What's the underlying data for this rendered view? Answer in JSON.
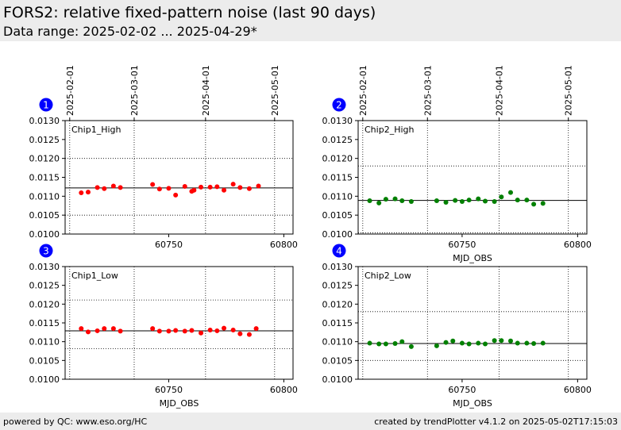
{
  "header": {
    "title": "FORS2: relative fixed-pattern noise (last 90 days)",
    "subtitle": "Data range: 2025-02-02 ... 2025-04-29*"
  },
  "footer": {
    "left": "powered by QC: www.eso.org/HC",
    "right": "created by trendPlotter v4.1.2 on 2025-05-02T17:15:03"
  },
  "colors": {
    "chip1": "#ff0000",
    "chip2": "#008000",
    "badge": "#0000ff"
  },
  "chart_data": [
    {
      "type": "scatter",
      "badge": "1",
      "label": "Chip1_High",
      "color": "#ff0000",
      "xlabel": "",
      "ylabel": "",
      "xlim": [
        60705,
        60804
      ],
      "ylim": [
        0.01,
        0.013
      ],
      "yticks": [
        "0.0100",
        "0.0105",
        "0.0110",
        "0.0115",
        "0.0120",
        "0.0125",
        "0.0130"
      ],
      "xticks": [
        60750,
        60800
      ],
      "date_ticks": [
        {
          "label": "2025-02-01",
          "mjd": 60707
        },
        {
          "label": "2025-03-01",
          "mjd": 60735
        },
        {
          "label": "2025-04-01",
          "mjd": 60766
        },
        {
          "label": "2025-05-01",
          "mjd": 60796
        }
      ],
      "hlines": {
        "mean": 0.01122,
        "upper": 0.012,
        "lower": 0.0105
      },
      "x": [
        60712,
        60715,
        60719,
        60722,
        60726,
        60729,
        60743,
        60746,
        60750,
        60753,
        60757,
        60760,
        60761,
        60764,
        60768,
        60771,
        60774,
        60778,
        60781,
        60785,
        60789
      ],
      "y": [
        0.01109,
        0.01111,
        0.01123,
        0.0112,
        0.01127,
        0.01123,
        0.01131,
        0.01119,
        0.01121,
        0.01103,
        0.01126,
        0.01113,
        0.01116,
        0.01124,
        0.01124,
        0.01125,
        0.01116,
        0.01132,
        0.01123,
        0.0112,
        0.01127
      ]
    },
    {
      "type": "scatter",
      "badge": "2",
      "label": "Chip2_High",
      "color": "#008000",
      "xlabel": "MJD_OBS",
      "ylabel": "",
      "xlim": [
        60705,
        60804
      ],
      "ylim": [
        0.01,
        0.013
      ],
      "yticks": [
        "0.0100",
        "0.0105",
        "0.0110",
        "0.0115",
        "0.0120",
        "0.0125",
        "0.0130"
      ],
      "xticks": [
        60750,
        60800
      ],
      "date_ticks": [
        {
          "label": "2025-02-01",
          "mjd": 60707
        },
        {
          "label": "2025-03-01",
          "mjd": 60735
        },
        {
          "label": "2025-04-01",
          "mjd": 60766
        },
        {
          "label": "2025-05-01",
          "mjd": 60796
        }
      ],
      "hlines": {
        "mean": 0.01089,
        "upper": 0.0118,
        "lower": 0.01003
      },
      "x": [
        60710,
        60714,
        60717,
        60721,
        60724,
        60728,
        60739,
        60743,
        60747,
        60750,
        60753,
        60757,
        60760,
        60764,
        60767,
        60771,
        60774,
        60778,
        60781,
        60785
      ],
      "y": [
        0.01088,
        0.01082,
        0.01092,
        0.01093,
        0.01088,
        0.01086,
        0.01088,
        0.01084,
        0.01089,
        0.01086,
        0.0109,
        0.01093,
        0.01087,
        0.01086,
        0.01098,
        0.0111,
        0.0109,
        0.0109,
        0.01079,
        0.01081
      ]
    },
    {
      "type": "scatter",
      "badge": "3",
      "label": "Chip1_Low",
      "color": "#ff0000",
      "xlabel": "MJD_OBS",
      "ylabel": "",
      "xlim": [
        60705,
        60804
      ],
      "ylim": [
        0.01,
        0.013
      ],
      "yticks": [
        "0.0100",
        "0.0105",
        "0.0110",
        "0.0115",
        "0.0120",
        "0.0125",
        "0.0130"
      ],
      "xticks": [
        60750,
        60800
      ],
      "date_ticks": [],
      "hlines": {
        "mean": 0.01129,
        "upper": 0.01211,
        "lower": 0.01081
      },
      "x": [
        60712,
        60715,
        60719,
        60722,
        60726,
        60729,
        60743,
        60746,
        60750,
        60753,
        60757,
        60760,
        60764,
        60768,
        60771,
        60774,
        60778,
        60781,
        60785,
        60788
      ],
      "y": [
        0.01135,
        0.01126,
        0.01129,
        0.01135,
        0.01135,
        0.01128,
        0.01135,
        0.01128,
        0.01128,
        0.0113,
        0.01128,
        0.0113,
        0.01123,
        0.01131,
        0.01129,
        0.01136,
        0.01131,
        0.01121,
        0.01119,
        0.01135
      ]
    },
    {
      "type": "scatter",
      "badge": "4",
      "label": "Chip2_Low",
      "color": "#008000",
      "xlabel": "MJD_OBS",
      "ylabel": "",
      "xlim": [
        60705,
        60804
      ],
      "ylim": [
        0.01,
        0.013
      ],
      "yticks": [
        "0.0100",
        "0.0105",
        "0.0110",
        "0.0115",
        "0.0120",
        "0.0125",
        "0.0130"
      ],
      "xticks": [
        60750,
        60800
      ],
      "date_ticks": [],
      "hlines": {
        "mean": 0.01095,
        "upper": 0.0118,
        "lower": 0.0105
      },
      "x": [
        60710,
        60714,
        60717,
        60721,
        60724,
        60728,
        60739,
        60743,
        60746,
        60750,
        60753,
        60757,
        60760,
        60764,
        60767,
        60771,
        60774,
        60778,
        60781,
        60785
      ],
      "y": [
        0.01096,
        0.01094,
        0.01094,
        0.01095,
        0.011,
        0.01087,
        0.01089,
        0.01098,
        0.01102,
        0.01096,
        0.01094,
        0.01096,
        0.01094,
        0.01103,
        0.01103,
        0.01102,
        0.01096,
        0.01096,
        0.01095,
        0.01096
      ]
    }
  ]
}
